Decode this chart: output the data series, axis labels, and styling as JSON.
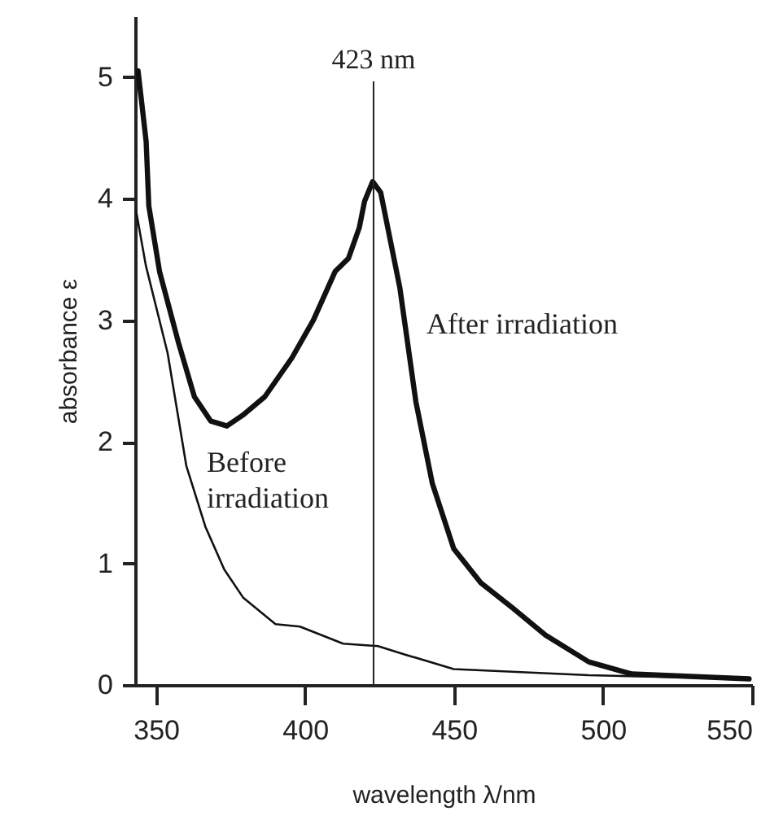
{
  "chart_data": {
    "type": "line",
    "xlabel": "wavelength λ/nm",
    "ylabel": "absorbance ε",
    "xlim": [
      343,
      550
    ],
    "ylim": [
      0,
      5.5
    ],
    "xticks": [
      350,
      400,
      450,
      500,
      550
    ],
    "yticks": [
      0,
      1,
      2,
      3,
      4,
      5
    ],
    "grid": false,
    "marker": "none",
    "line_style": "solid",
    "series": [
      {
        "name": "After irradiation",
        "color": "#111111",
        "x": [
          344,
          346.7,
          347.6,
          351.2,
          357.5,
          362.9,
          368.4,
          373.8,
          379.2,
          386.5,
          395.6,
          402.8,
          410.1,
          414.6,
          418.2,
          420,
          422.7,
          425.4,
          431.8,
          437.2,
          442.7,
          449.9,
          459,
          469.8,
          480.7,
          495.2,
          509.7,
          549
        ],
        "values": [
          5.05,
          4.47,
          3.94,
          3.4,
          2.82,
          2.37,
          2.17,
          2.13,
          2.22,
          2.37,
          2.69,
          3.0,
          3.4,
          3.51,
          3.76,
          3.98,
          4.14,
          4.05,
          3.27,
          2.33,
          1.66,
          1.12,
          0.84,
          0.63,
          0.41,
          0.19,
          0.09,
          0.05
        ]
      },
      {
        "name": "Before\nirradiation",
        "color": "#111111",
        "x": [
          343.4,
          346.6,
          353.9,
          360.2,
          366.6,
          372.9,
          379.2,
          390.1,
          398.3,
          412.8,
          424.5,
          433.6,
          449.9,
          495.2,
          549
        ],
        "values": [
          3.89,
          3.45,
          2.73,
          1.8,
          1.3,
          0.95,
          0.72,
          0.5,
          0.48,
          0.34,
          0.32,
          0.25,
          0.13,
          0.08,
          0.05
        ]
      }
    ],
    "ref_lines": [
      {
        "axis": "x",
        "value": 423,
        "label": "423 nm"
      }
    ]
  }
}
